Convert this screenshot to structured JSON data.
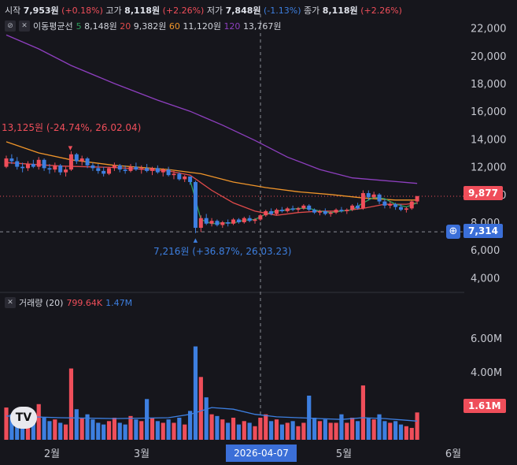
{
  "header": {
    "open_label": "시작",
    "open_value": "7,953원",
    "open_change": "(+0.18%)",
    "high_label": "고가",
    "high_value": "8,118원",
    "high_change": "(+2.26%)",
    "low_label": "저가",
    "low_value": "7,848원",
    "low_change": "(-1.13%)",
    "close_label": "종가",
    "close_value": "8,118원",
    "close_change": "(+2.26%)"
  },
  "ma_legend": {
    "title": "이동평균선",
    "items": [
      {
        "period": "5",
        "value": "8,148원",
        "color": "#2e9e5b"
      },
      {
        "period": "20",
        "value": "9,382원",
        "color": "#e04a4a"
      },
      {
        "period": "60",
        "value": "11,120원",
        "color": "#f0952a"
      },
      {
        "period": "120",
        "value": "13,767원",
        "color": "#8e3fbf"
      }
    ]
  },
  "volume_legend": {
    "title": "거래량 (20)",
    "value1": "799.64K",
    "value2": "1.47M"
  },
  "chart_data": {
    "type": "candlestick",
    "price_axis": {
      "ticks": [
        "22,000",
        "20,000",
        "18,000",
        "16,000",
        "14,000",
        "12,000",
        "10,000",
        "8,000",
        "6,000",
        "4,000"
      ],
      "min": 3000,
      "max": 23000
    },
    "volume_axis": {
      "ticks": [
        "6.00M",
        "4.00M",
        "2.00M"
      ],
      "max": 6500000
    },
    "x_axis": {
      "labels": [
        "2월",
        "3월",
        "5월",
        "6월"
      ]
    },
    "crosshair_date": "2026-04-07",
    "current_price_tag": "9,877",
    "crosshair_price_tag": "7,314",
    "volume_tag": "1.61M",
    "annotations": {
      "high": "13,125원 (-24.74%, 26.02.04)",
      "low": "7,216원 (+36.87%, 26.03.23)"
    },
    "candles": [
      [
        12000,
        12800,
        11900,
        12600,
        1900000
      ],
      [
        12600,
        12900,
        12200,
        12400,
        1500000
      ],
      [
        12400,
        12700,
        11800,
        12000,
        1300000
      ],
      [
        12000,
        12300,
        11600,
        11900,
        1200000
      ],
      [
        11900,
        12400,
        11700,
        12200,
        900000
      ],
      [
        12200,
        12500,
        11900,
        12000,
        1000000
      ],
      [
        12000,
        12700,
        11800,
        12500,
        2100000
      ],
      [
        12500,
        12600,
        11700,
        11900,
        1300000
      ],
      [
        11900,
        12200,
        11500,
        11800,
        1100000
      ],
      [
        11800,
        12300,
        11600,
        12100,
        1200000
      ],
      [
        12100,
        12200,
        11400,
        11600,
        1000000
      ],
      [
        11600,
        12000,
        11300,
        11800,
        900000
      ],
      [
        11800,
        13125,
        11700,
        12900,
        4200000
      ],
      [
        12900,
        13000,
        12200,
        12400,
        1800000
      ],
      [
        12400,
        12800,
        12100,
        12600,
        1300000
      ],
      [
        12600,
        12700,
        11900,
        12100,
        1500000
      ],
      [
        12100,
        12300,
        11700,
        11900,
        1200000
      ],
      [
        11900,
        12200,
        11500,
        11700,
        1000000
      ],
      [
        11700,
        12000,
        11300,
        11500,
        900000
      ],
      [
        11500,
        12000,
        11400,
        11900,
        1100000
      ],
      [
        11900,
        12300,
        11700,
        12100,
        1300000
      ],
      [
        12100,
        12200,
        11600,
        11800,
        1000000
      ],
      [
        11800,
        12100,
        11500,
        11700,
        900000
      ],
      [
        11700,
        12200,
        11600,
        12000,
        1400000
      ],
      [
        12000,
        12300,
        11700,
        11800,
        1200000
      ],
      [
        11800,
        12100,
        11500,
        11900,
        1100000
      ],
      [
        11900,
        12200,
        11600,
        11700,
        2400000
      ],
      [
        11700,
        12000,
        11400,
        11900,
        1300000
      ],
      [
        11900,
        12100,
        11500,
        11600,
        1100000
      ],
      [
        11600,
        11900,
        11300,
        11800,
        1000000
      ],
      [
        11800,
        12000,
        11300,
        11400,
        1200000
      ],
      [
        11400,
        11700,
        11100,
        11500,
        1000000
      ],
      [
        11500,
        11600,
        11000,
        11100,
        1300000
      ],
      [
        11100,
        11400,
        10900,
        11300,
        900000
      ],
      [
        11300,
        11300,
        10700,
        10900,
        1700000
      ],
      [
        10900,
        11000,
        7216,
        7600,
        5500000
      ],
      [
        7600,
        8500,
        7300,
        8300,
        3700000
      ],
      [
        8300,
        8600,
        7800,
        7900,
        2500000
      ],
      [
        7900,
        8300,
        7700,
        8100,
        1500000
      ],
      [
        8100,
        8200,
        7700,
        7800,
        1400000
      ],
      [
        7800,
        8100,
        7600,
        8000,
        1200000
      ],
      [
        8000,
        8200,
        7700,
        7900,
        1000000
      ],
      [
        7900,
        8300,
        7800,
        8200,
        1300000
      ],
      [
        8200,
        8300,
        7900,
        8000,
        900000
      ],
      [
        8000,
        8400,
        7900,
        8300,
        1100000
      ],
      [
        8300,
        8500,
        8000,
        8100,
        1000000
      ],
      [
        8100,
        8300,
        7900,
        8200,
        800000
      ],
      [
        8200,
        8600,
        8100,
        8500,
        1300000
      ],
      [
        8500,
        8900,
        8400,
        8800,
        1500000
      ],
      [
        8800,
        9000,
        8500,
        8600,
        1100000
      ],
      [
        8600,
        9000,
        8500,
        8900,
        1200000
      ],
      [
        8900,
        9100,
        8700,
        8800,
        900000
      ],
      [
        8800,
        9100,
        8700,
        9000,
        1000000
      ],
      [
        9000,
        9200,
        8800,
        8900,
        1100000
      ],
      [
        8900,
        9100,
        8700,
        9000,
        800000
      ],
      [
        9000,
        9300,
        8900,
        9200,
        1000000
      ],
      [
        9200,
        9300,
        8800,
        8900,
        2600000
      ],
      [
        8900,
        9000,
        8600,
        8700,
        1300000
      ],
      [
        8700,
        8900,
        8500,
        8800,
        1100000
      ],
      [
        8800,
        9000,
        8500,
        8600,
        1200000
      ],
      [
        8600,
        8800,
        8400,
        8700,
        1000000
      ],
      [
        8700,
        9000,
        8600,
        8900,
        1000000
      ],
      [
        8900,
        9100,
        8700,
        8800,
        1500000
      ],
      [
        8800,
        9000,
        8600,
        8900,
        1000000
      ],
      [
        8900,
        9300,
        8800,
        9200,
        1300000
      ],
      [
        9200,
        9400,
        8900,
        9000,
        1100000
      ],
      [
        9000,
        10300,
        8900,
        10100,
        3200000
      ],
      [
        10100,
        10300,
        9600,
        9800,
        1300000
      ],
      [
        9800,
        10200,
        9700,
        10000,
        1200000
      ],
      [
        10000,
        10100,
        9300,
        9500,
        1500000
      ],
      [
        9500,
        9700,
        9000,
        9200,
        1100000
      ],
      [
        9200,
        9500,
        9000,
        9300,
        1000000
      ],
      [
        9300,
        9400,
        8900,
        9100,
        1100000
      ],
      [
        9100,
        9300,
        8800,
        8900,
        900000
      ],
      [
        8900,
        9100,
        8700,
        9000,
        800000
      ],
      [
        9000,
        9600,
        8900,
        9500,
        700000
      ],
      [
        9500,
        9900,
        9300,
        9877,
        1610000
      ]
    ],
    "ma": {
      "ma5": [
        [
          34,
          11050
        ],
        [
          36,
          8200
        ],
        [
          38,
          7900
        ],
        [
          40,
          7950
        ],
        [
          42,
          7950
        ],
        [
          44,
          8150
        ],
        [
          46,
          8200
        ],
        [
          48,
          8600
        ],
        [
          50,
          8800
        ],
        [
          52,
          8900
        ],
        [
          54,
          9000
        ],
        [
          56,
          9000
        ],
        [
          58,
          8800
        ],
        [
          60,
          8700
        ],
        [
          62,
          8800
        ],
        [
          64,
          8900
        ],
        [
          66,
          9400
        ],
        [
          68,
          9800
        ],
        [
          70,
          9700
        ],
        [
          72,
          9300
        ],
        [
          74,
          9100
        ],
        [
          76,
          9400
        ]
      ],
      "ma20": [
        [
          0,
          12300
        ],
        [
          10,
          12050
        ],
        [
          20,
          11950
        ],
        [
          30,
          11700
        ],
        [
          34,
          11400
        ],
        [
          38,
          10300
        ],
        [
          42,
          9400
        ],
        [
          46,
          8800
        ],
        [
          50,
          8500
        ],
        [
          54,
          8700
        ],
        [
          58,
          8800
        ],
        [
          62,
          8800
        ],
        [
          66,
          9000
        ],
        [
          70,
          9300
        ],
        [
          74,
          9300
        ],
        [
          76,
          9400
        ]
      ],
      "ma60": [
        [
          0,
          13800
        ],
        [
          6,
          13000
        ],
        [
          12,
          12500
        ],
        [
          20,
          12100
        ],
        [
          30,
          11800
        ],
        [
          36,
          11500
        ],
        [
          42,
          10900
        ],
        [
          48,
          10500
        ],
        [
          54,
          10200
        ],
        [
          60,
          10000
        ],
        [
          66,
          9750
        ],
        [
          72,
          9600
        ],
        [
          76,
          9600
        ]
      ],
      "ma120": [
        [
          0,
          21500
        ],
        [
          6,
          20500
        ],
        [
          12,
          19300
        ],
        [
          20,
          18000
        ],
        [
          28,
          16800
        ],
        [
          34,
          16000
        ],
        [
          40,
          15000
        ],
        [
          46,
          13900
        ],
        [
          52,
          12700
        ],
        [
          58,
          11800
        ],
        [
          64,
          11200
        ],
        [
          70,
          11000
        ],
        [
          76,
          10800
        ]
      ],
      "vol_ma": [
        [
          0,
          1400000
        ],
        [
          10,
          1300000
        ],
        [
          20,
          1250000
        ],
        [
          30,
          1300000
        ],
        [
          34,
          1500000
        ],
        [
          38,
          1900000
        ],
        [
          42,
          1800000
        ],
        [
          46,
          1500000
        ],
        [
          50,
          1350000
        ],
        [
          54,
          1300000
        ],
        [
          58,
          1250000
        ],
        [
          62,
          1200000
        ],
        [
          66,
          1300000
        ],
        [
          70,
          1250000
        ],
        [
          76,
          1100000
        ]
      ]
    }
  }
}
